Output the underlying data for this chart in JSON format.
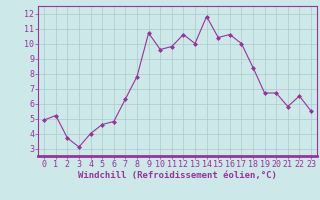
{
  "x": [
    0,
    1,
    2,
    3,
    4,
    5,
    6,
    7,
    8,
    9,
    10,
    11,
    12,
    13,
    14,
    15,
    16,
    17,
    18,
    19,
    20,
    21,
    22,
    23
  ],
  "y": [
    4.9,
    5.2,
    3.7,
    3.1,
    4.0,
    4.6,
    4.8,
    6.3,
    7.8,
    10.7,
    9.6,
    9.8,
    10.6,
    10.0,
    11.8,
    10.4,
    10.6,
    10.0,
    8.4,
    6.7,
    6.7,
    5.8,
    6.5,
    5.5
  ],
  "line_color": "#993399",
  "marker": "D",
  "marker_size": 2,
  "bg_color": "#cce8e8",
  "grid_color": "#aacccc",
  "xlabel": "Windchill (Refroidissement éolien,°C)",
  "xlim": [
    -0.5,
    23.5
  ],
  "ylim": [
    2.5,
    12.5
  ],
  "yticks": [
    3,
    4,
    5,
    6,
    7,
    8,
    9,
    10,
    11,
    12
  ],
  "xticks": [
    0,
    1,
    2,
    3,
    4,
    5,
    6,
    7,
    8,
    9,
    10,
    11,
    12,
    13,
    14,
    15,
    16,
    17,
    18,
    19,
    20,
    21,
    22,
    23
  ],
  "tick_color": "#993399",
  "label_color": "#993399",
  "spine_color": "#993399",
  "xlabel_fontsize": 6.5,
  "tick_fontsize": 6
}
